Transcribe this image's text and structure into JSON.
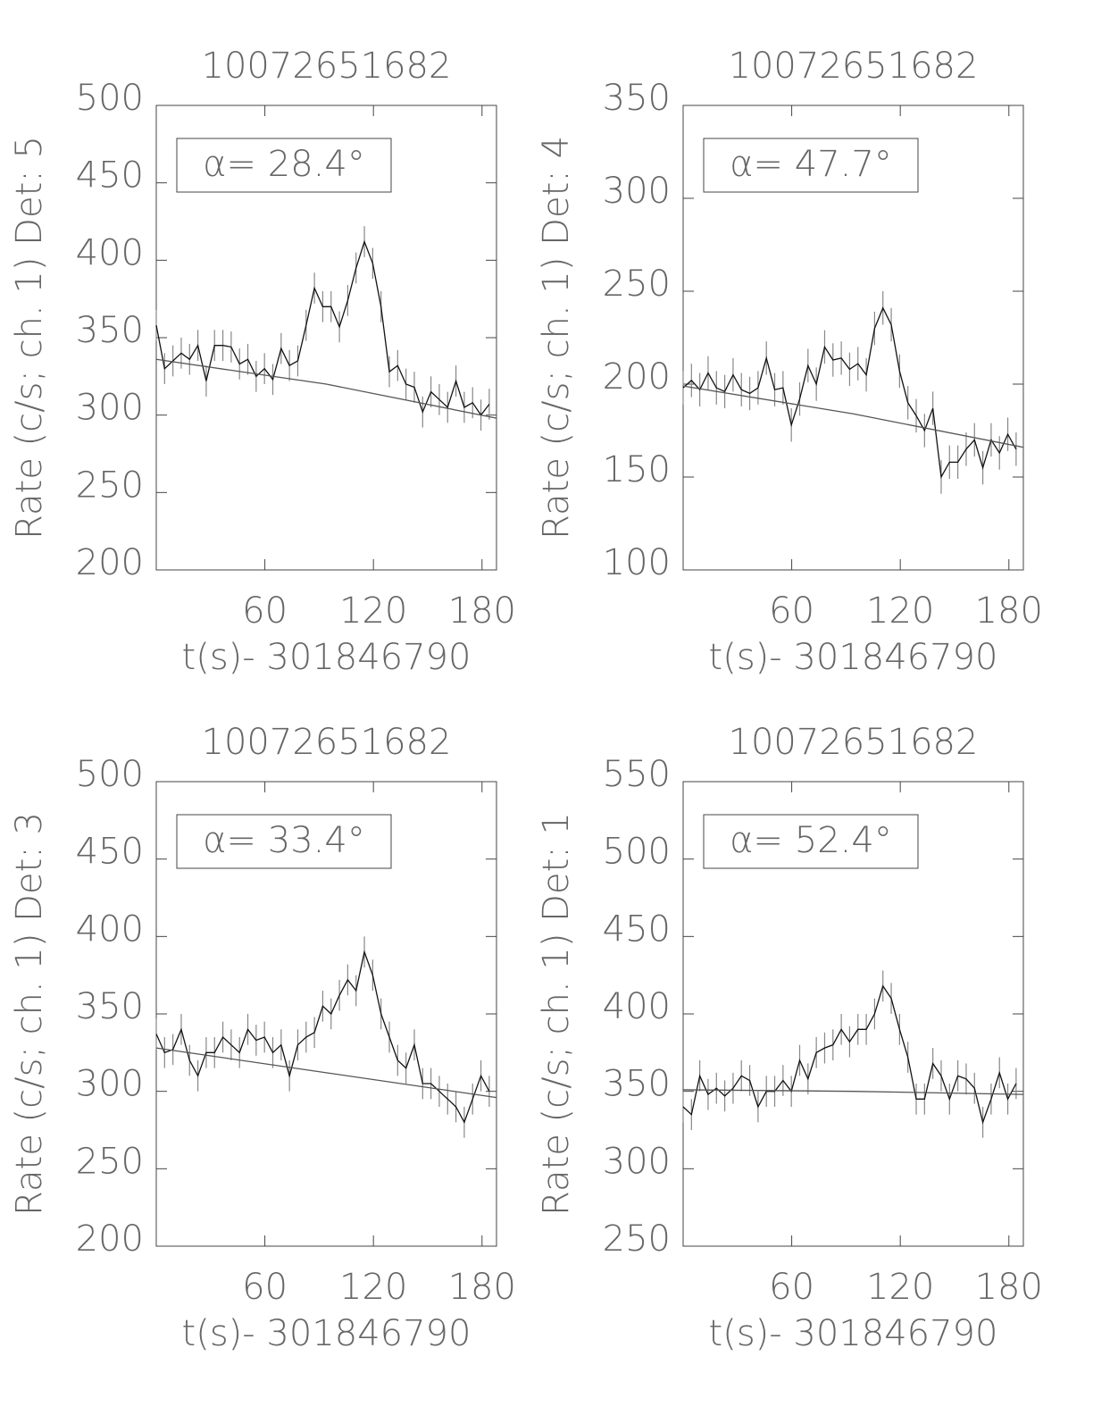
{
  "chart_data": [
    {
      "type": "line",
      "title": "10072651682",
      "xlabel": "t(s)- 301846790",
      "ylabel": "Rate (c/s; ch. 1) Det: 5",
      "annotation": "α= 28.4°",
      "x": [
        0,
        4.6,
        9.2,
        13.8,
        18.4,
        23,
        27.6,
        32.2,
        36.8,
        41.4,
        46,
        50.6,
        55.2,
        59.8,
        64.4,
        69,
        73.6,
        78.2,
        82.8,
        87.4,
        92,
        96.6,
        101.2,
        105.8,
        110.4,
        115,
        119.6,
        124.2,
        128.8,
        133.4,
        138,
        142.6,
        147.2,
        151.8,
        156.4,
        161,
        165.6,
        170.2,
        174.8,
        179.4,
        184
      ],
      "values": [
        358,
        330,
        335,
        340,
        336,
        345,
        322,
        345,
        345,
        344,
        333,
        336,
        325,
        330,
        323,
        343,
        332,
        335,
        358,
        382,
        370,
        370,
        357,
        374,
        395,
        412,
        398,
        370,
        328,
        332,
        320,
        318,
        302,
        315,
        310,
        305,
        322,
        305,
        308,
        300,
        307
      ],
      "error": 10,
      "color": "#111111",
      "error_color": "#888888",
      "fit": {
        "x": [
          0,
          94,
          188
        ],
        "values": [
          336,
          320,
          298
        ]
      },
      "xlim": [
        0,
        188
      ],
      "ylim": [
        200,
        500
      ],
      "xticks": [
        60,
        120,
        180
      ],
      "yticks": [
        200,
        250,
        300,
        350,
        400,
        450,
        500
      ]
    },
    {
      "type": "line",
      "title": "10072651682",
      "xlabel": "t(s)- 301846790",
      "ylabel": "Rate (c/s; ch. 1) Det: 4",
      "annotation": "α= 47.7°",
      "x": [
        0,
        4.6,
        9.2,
        13.8,
        18.4,
        23,
        27.6,
        32.2,
        36.8,
        41.4,
        46,
        50.6,
        55.2,
        59.8,
        64.4,
        69,
        73.6,
        78.2,
        82.8,
        87.4,
        92,
        96.6,
        101.2,
        105.8,
        110.4,
        115,
        119.6,
        124.2,
        128.8,
        133.4,
        138,
        142.6,
        147.2,
        151.8,
        156.4,
        161,
        165.6,
        170.2,
        174.8,
        179.4,
        184
      ],
      "values": [
        198,
        202,
        197,
        206,
        198,
        196,
        205,
        197,
        195,
        198,
        214,
        197,
        198,
        178,
        192,
        210,
        200,
        220,
        213,
        214,
        208,
        211,
        205,
        230,
        241,
        232,
        207,
        190,
        183,
        175,
        187,
        150,
        158,
        158,
        165,
        170,
        155,
        170,
        163,
        173,
        165
      ],
      "error": 9,
      "color": "#111111",
      "error_color": "#888888",
      "fit": {
        "x": [
          0,
          94,
          188
        ],
        "values": [
          199,
          184,
          166
        ]
      },
      "xlim": [
        0,
        188
      ],
      "ylim": [
        100,
        350
      ],
      "xticks": [
        60,
        120,
        180
      ],
      "yticks": [
        100,
        150,
        200,
        250,
        300,
        350
      ]
    },
    {
      "type": "line",
      "title": "10072651682",
      "xlabel": "t(s)- 301846790",
      "ylabel": "Rate (c/s; ch. 1) Det: 3",
      "annotation": "α= 33.4°",
      "x": [
        0,
        4.6,
        9.2,
        13.8,
        18.4,
        23,
        27.6,
        32.2,
        36.8,
        41.4,
        46,
        50.6,
        55.2,
        59.8,
        64.4,
        69,
        73.6,
        78.2,
        82.8,
        87.4,
        92,
        96.6,
        101.2,
        105.8,
        110.4,
        115,
        119.6,
        124.2,
        128.8,
        133.4,
        138,
        142.6,
        147.2,
        151.8,
        156.4,
        161,
        165.6,
        170.2,
        174.8,
        179.4,
        184
      ],
      "values": [
        337,
        325,
        327,
        340,
        320,
        310,
        325,
        325,
        335,
        330,
        325,
        340,
        333,
        335,
        325,
        330,
        310,
        330,
        335,
        338,
        355,
        350,
        362,
        372,
        365,
        390,
        375,
        350,
        335,
        320,
        315,
        330,
        305,
        305,
        300,
        295,
        290,
        280,
        295,
        310,
        300
      ],
      "error": 10,
      "color": "#111111",
      "error_color": "#888888",
      "fit": {
        "x": [
          0,
          94,
          188
        ],
        "values": [
          328,
          312,
          296
        ]
      },
      "xlim": [
        0,
        188
      ],
      "ylim": [
        200,
        500
      ],
      "xticks": [
        60,
        120,
        180
      ],
      "yticks": [
        200,
        250,
        300,
        350,
        400,
        450,
        500
      ]
    },
    {
      "type": "line",
      "title": "10072651682",
      "xlabel": "t(s)- 301846790",
      "ylabel": "Rate (c/s; ch. 1) Det: 1",
      "annotation": "α= 52.4°",
      "x": [
        0,
        4.6,
        9.2,
        13.8,
        18.4,
        23,
        27.6,
        32.2,
        36.8,
        41.4,
        46,
        50.6,
        55.2,
        59.8,
        64.4,
        69,
        73.6,
        78.2,
        82.8,
        87.4,
        92,
        96.6,
        101.2,
        105.8,
        110.4,
        115,
        119.6,
        124.2,
        128.8,
        133.4,
        138,
        142.6,
        147.2,
        151.8,
        156.4,
        161,
        165.6,
        170.2,
        174.8,
        179.4,
        184
      ],
      "values": [
        340,
        335,
        360,
        348,
        352,
        347,
        352,
        360,
        357,
        340,
        350,
        350,
        357,
        350,
        370,
        358,
        375,
        378,
        380,
        390,
        382,
        390,
        390,
        400,
        418,
        410,
        390,
        372,
        345,
        345,
        368,
        360,
        345,
        360,
        358,
        352,
        330,
        345,
        362,
        345,
        355
      ],
      "error": 10,
      "color": "#111111",
      "error_color": "#888888",
      "fit": {
        "x": [
          0,
          94,
          188
        ],
        "values": [
          351,
          350,
          348
        ]
      },
      "xlim": [
        0,
        188
      ],
      "ylim": [
        250,
        550
      ],
      "xticks": [
        60,
        120,
        180
      ],
      "yticks": [
        250,
        300,
        350,
        400,
        450,
        500,
        550
      ]
    }
  ]
}
